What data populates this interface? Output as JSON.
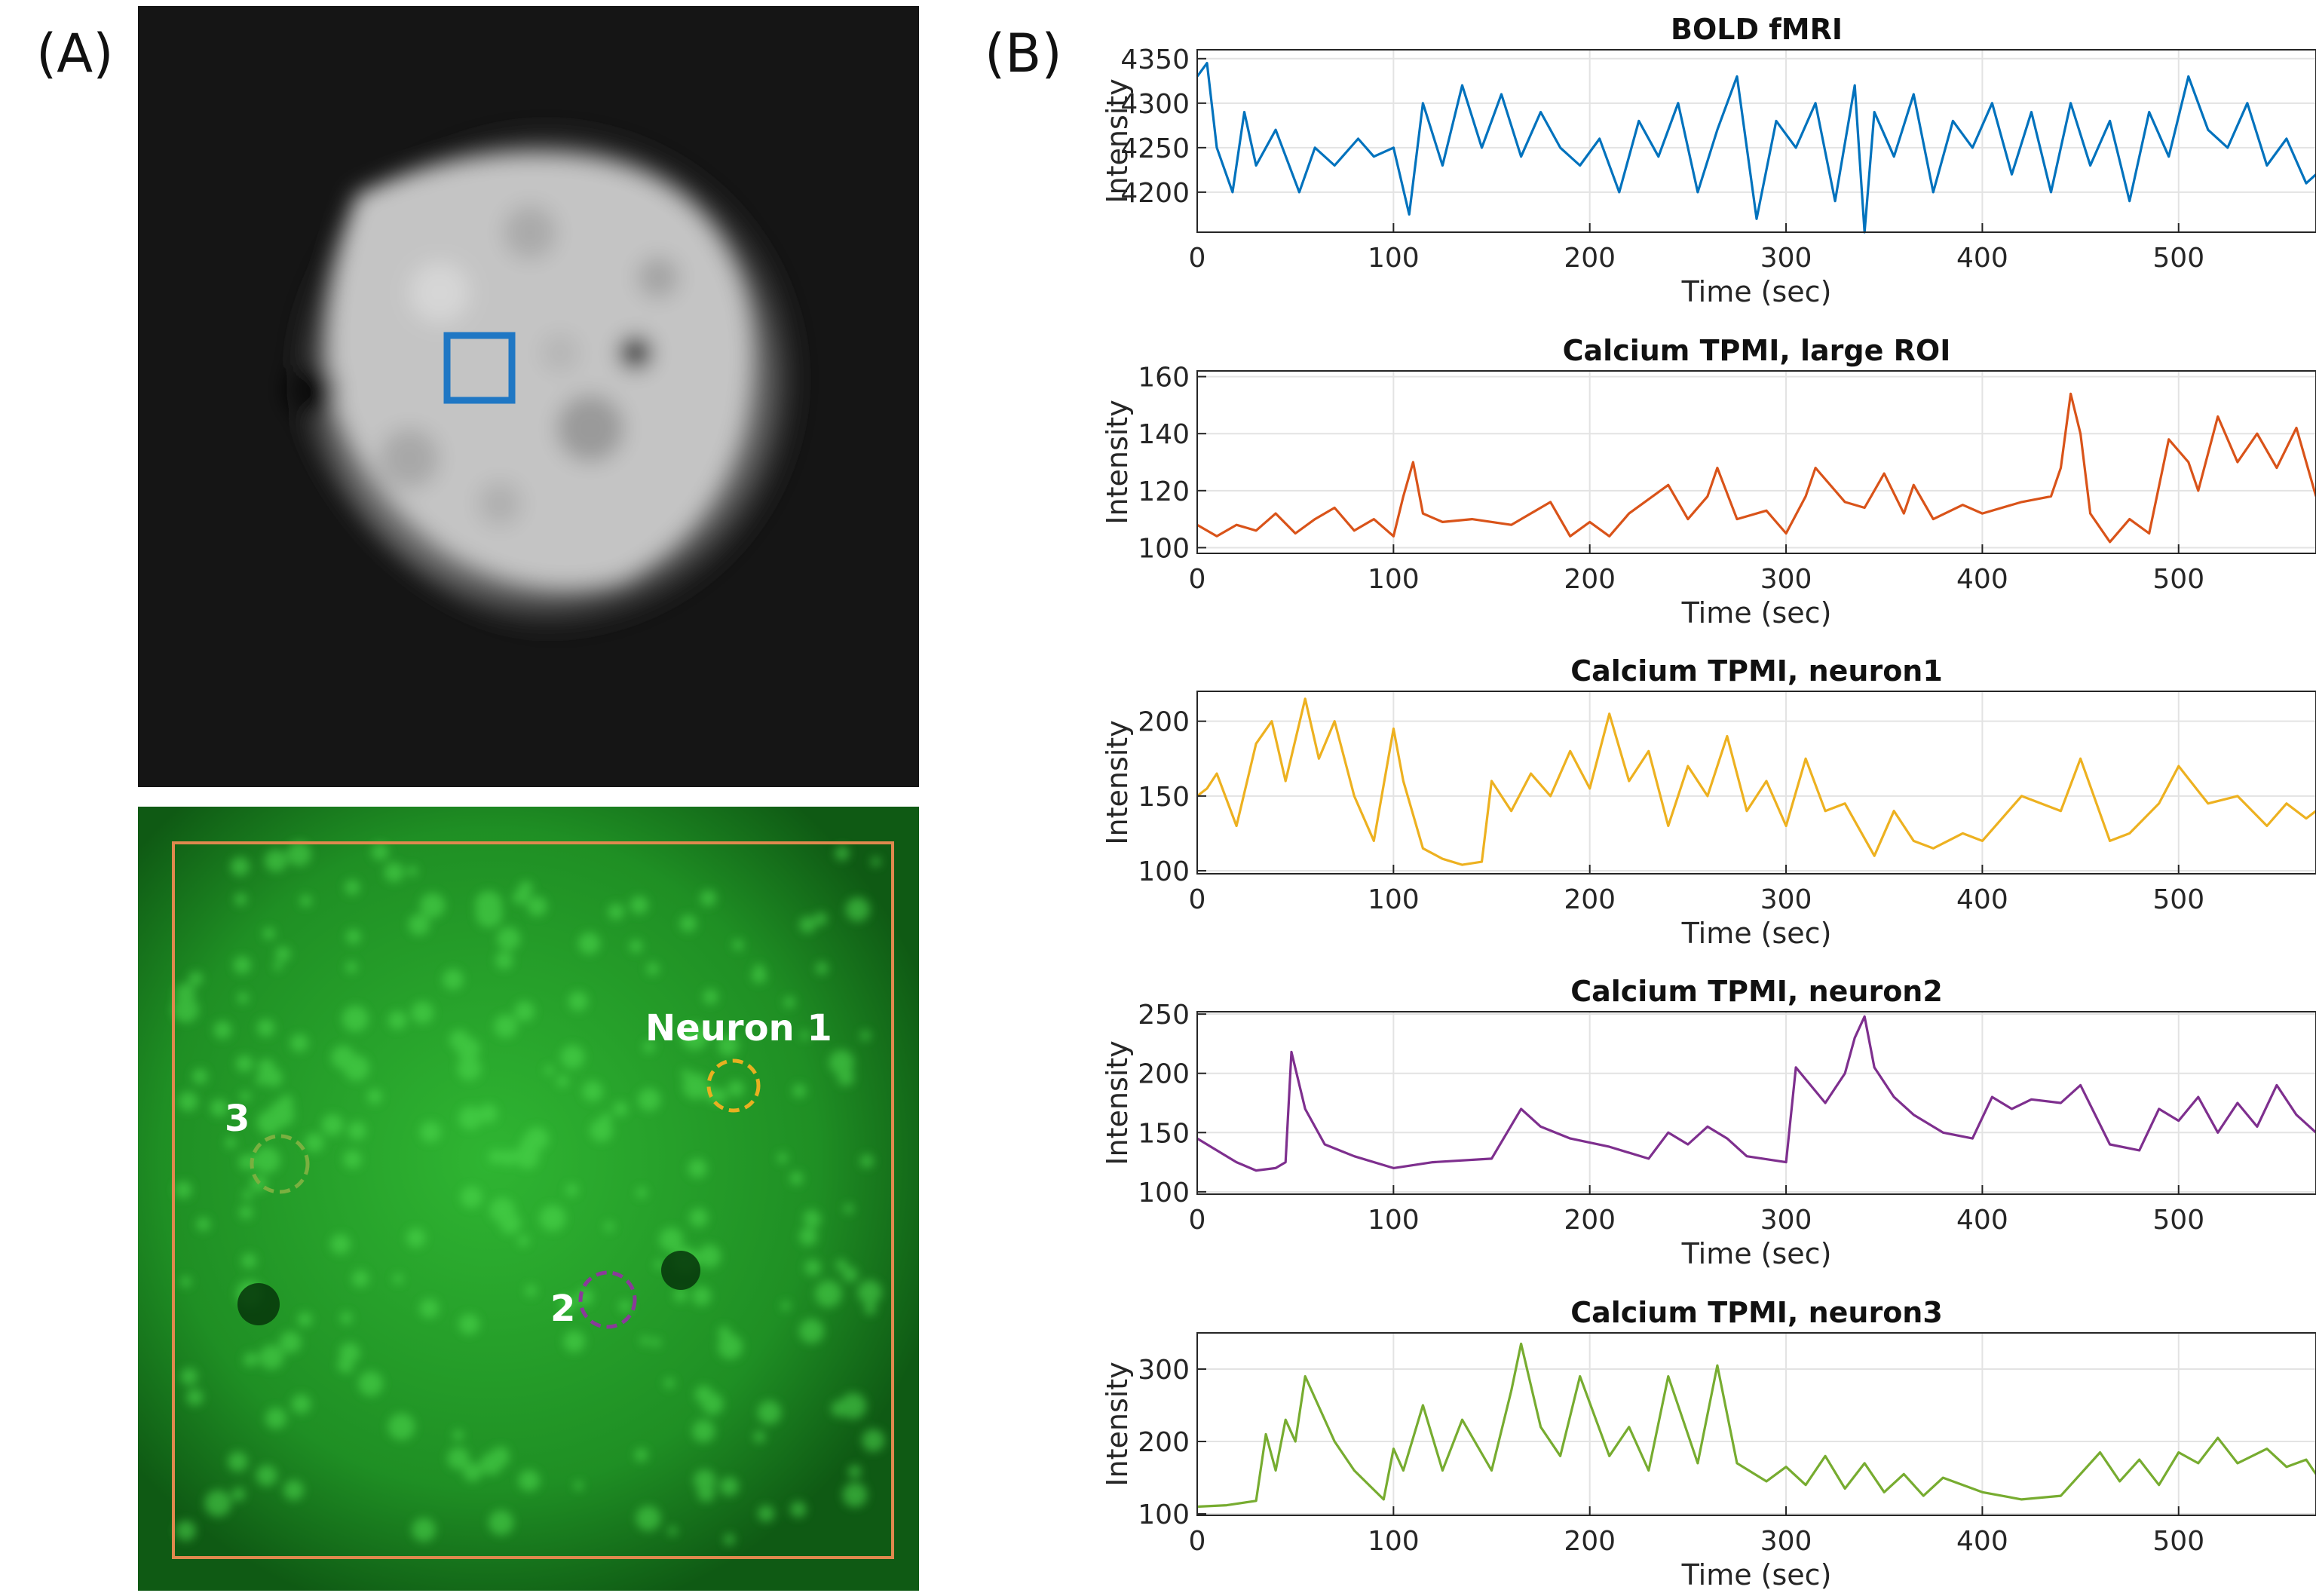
{
  "panels": {
    "a": {
      "label": "(A)"
    },
    "b": {
      "label": "(B)"
    }
  },
  "images": {
    "bold_roi_color": "#1f77c4",
    "tpmi_roi_box_color": "#e0894e",
    "neuron_annotations": [
      {
        "text": "Neuron 1",
        "color": "#e8b020"
      },
      {
        "text": "2",
        "color": "#8a3a9a"
      },
      {
        "text": "3",
        "color": "#7ab040"
      }
    ]
  },
  "chart_data": [
    {
      "type": "line",
      "title": "BOLD fMRI",
      "xlabel": "Time (sec)",
      "ylabel": "Intensity",
      "color": "#0072bd",
      "xlim": [
        0,
        570
      ],
      "ylim": [
        4155,
        4360
      ],
      "xticks": [
        0,
        100,
        200,
        300,
        400,
        500
      ],
      "yticks": [
        4200,
        4250,
        4300,
        4350
      ],
      "grid": true,
      "x": [
        0,
        5,
        10,
        18,
        24,
        30,
        40,
        52,
        60,
        70,
        82,
        90,
        100,
        108,
        115,
        125,
        135,
        145,
        155,
        165,
        175,
        185,
        195,
        205,
        215,
        225,
        235,
        245,
        255,
        265,
        275,
        285,
        295,
        305,
        315,
        325,
        335,
        340,
        345,
        355,
        365,
        375,
        385,
        395,
        405,
        415,
        425,
        435,
        445,
        455,
        465,
        475,
        485,
        495,
        505,
        515,
        525,
        535,
        545,
        555,
        565,
        570
      ],
      "y": [
        4330,
        4345,
        4250,
        4200,
        4290,
        4230,
        4270,
        4200,
        4250,
        4230,
        4260,
        4240,
        4250,
        4175,
        4300,
        4230,
        4320,
        4250,
        4310,
        4240,
        4290,
        4250,
        4230,
        4260,
        4200,
        4280,
        4240,
        4300,
        4200,
        4270,
        4330,
        4170,
        4280,
        4250,
        4300,
        4190,
        4320,
        4155,
        4290,
        4240,
        4310,
        4200,
        4280,
        4250,
        4300,
        4220,
        4290,
        4200,
        4300,
        4230,
        4280,
        4190,
        4290,
        4240,
        4330,
        4270,
        4250,
        4300,
        4230,
        4260,
        4210,
        4220
      ]
    },
    {
      "type": "line",
      "title": "Calcium TPMI, large ROI",
      "xlabel": "Time (sec)",
      "ylabel": "Intensity",
      "color": "#d95319",
      "xlim": [
        0,
        570
      ],
      "ylim": [
        98,
        162
      ],
      "xticks": [
        0,
        100,
        200,
        300,
        400,
        500
      ],
      "yticks": [
        100,
        120,
        140,
        160
      ],
      "grid": true,
      "x": [
        0,
        10,
        20,
        30,
        40,
        50,
        60,
        70,
        80,
        90,
        100,
        105,
        110,
        115,
        125,
        140,
        160,
        180,
        190,
        200,
        210,
        220,
        240,
        250,
        260,
        265,
        275,
        290,
        300,
        310,
        315,
        330,
        340,
        350,
        360,
        365,
        375,
        390,
        400,
        420,
        435,
        440,
        445,
        450,
        455,
        465,
        475,
        485,
        495,
        505,
        510,
        520,
        530,
        540,
        550,
        560,
        570
      ],
      "y": [
        108,
        104,
        108,
        106,
        112,
        105,
        110,
        114,
        106,
        110,
        104,
        118,
        130,
        112,
        109,
        110,
        108,
        116,
        104,
        109,
        104,
        112,
        122,
        110,
        118,
        128,
        110,
        113,
        105,
        118,
        128,
        116,
        114,
        126,
        112,
        122,
        110,
        115,
        112,
        116,
        118,
        128,
        154,
        140,
        112,
        102,
        110,
        105,
        138,
        130,
        120,
        146,
        130,
        140,
        128,
        142,
        118
      ]
    },
    {
      "type": "line",
      "title": "Calcium TPMI, neuron1",
      "xlabel": "Time (sec)",
      "ylabel": "Intensity",
      "color": "#edb120",
      "xlim": [
        0,
        570
      ],
      "ylim": [
        98,
        220
      ],
      "xticks": [
        0,
        100,
        200,
        300,
        400,
        500
      ],
      "yticks": [
        100,
        150,
        200
      ],
      "grid": true,
      "x": [
        0,
        5,
        10,
        20,
        30,
        38,
        45,
        55,
        62,
        70,
        80,
        90,
        100,
        105,
        115,
        125,
        135,
        145,
        150,
        160,
        170,
        180,
        190,
        200,
        210,
        220,
        230,
        240,
        250,
        260,
        270,
        280,
        290,
        300,
        310,
        320,
        330,
        345,
        355,
        365,
        375,
        390,
        400,
        420,
        440,
        450,
        465,
        475,
        490,
        500,
        515,
        530,
        545,
        555,
        565,
        570
      ],
      "y": [
        150,
        155,
        165,
        130,
        185,
        200,
        160,
        215,
        175,
        200,
        150,
        120,
        195,
        160,
        115,
        108,
        104,
        106,
        160,
        140,
        165,
        150,
        180,
        155,
        205,
        160,
        180,
        130,
        170,
        150,
        190,
        140,
        160,
        130,
        175,
        140,
        145,
        110,
        140,
        120,
        115,
        125,
        120,
        150,
        140,
        175,
        120,
        125,
        145,
        170,
        145,
        150,
        130,
        145,
        135,
        140
      ]
    },
    {
      "type": "line",
      "title": "Calcium TPMI, neuron2",
      "xlabel": "Time (sec)",
      "ylabel": "Intensity",
      "color": "#7e2f8e",
      "xlim": [
        0,
        570
      ],
      "ylim": [
        98,
        252
      ],
      "xticks": [
        0,
        100,
        200,
        300,
        400,
        500
      ],
      "yticks": [
        100,
        150,
        200,
        250
      ],
      "grid": true,
      "x": [
        0,
        10,
        20,
        30,
        40,
        45,
        48,
        55,
        65,
        80,
        100,
        120,
        150,
        165,
        175,
        190,
        210,
        230,
        240,
        250,
        260,
        270,
        280,
        300,
        305,
        310,
        320,
        330,
        335,
        340,
        345,
        355,
        365,
        380,
        395,
        405,
        415,
        425,
        440,
        450,
        465,
        480,
        490,
        500,
        510,
        520,
        530,
        540,
        550,
        560,
        570
      ],
      "y": [
        145,
        135,
        125,
        118,
        120,
        125,
        218,
        170,
        140,
        130,
        120,
        125,
        128,
        170,
        155,
        145,
        138,
        128,
        150,
        140,
        155,
        145,
        130,
        125,
        205,
        195,
        175,
        200,
        230,
        248,
        205,
        180,
        165,
        150,
        145,
        180,
        170,
        178,
        175,
        190,
        140,
        135,
        170,
        160,
        180,
        150,
        175,
        155,
        190,
        165,
        150
      ]
    },
    {
      "type": "line",
      "title": "Calcium TPMI, neuron3",
      "xlabel": "Time (sec)",
      "ylabel": "Intensity",
      "color": "#77ac30",
      "xlim": [
        0,
        570
      ],
      "ylim": [
        98,
        350
      ],
      "xticks": [
        0,
        100,
        200,
        300,
        400,
        500
      ],
      "yticks": [
        100,
        200,
        300
      ],
      "grid": true,
      "x": [
        0,
        15,
        30,
        35,
        40,
        45,
        50,
        55,
        70,
        80,
        95,
        100,
        105,
        115,
        125,
        135,
        150,
        160,
        165,
        175,
        185,
        195,
        210,
        220,
        230,
        240,
        255,
        265,
        275,
        290,
        300,
        310,
        320,
        330,
        340,
        350,
        360,
        370,
        380,
        400,
        420,
        440,
        460,
        470,
        480,
        490,
        500,
        510,
        520,
        530,
        545,
        555,
        565,
        570
      ],
      "y": [
        110,
        112,
        118,
        210,
        160,
        230,
        200,
        290,
        200,
        160,
        120,
        190,
        160,
        250,
        160,
        230,
        160,
        270,
        335,
        220,
        180,
        290,
        180,
        220,
        160,
        290,
        170,
        305,
        170,
        145,
        165,
        140,
        180,
        135,
        170,
        130,
        155,
        125,
        150,
        130,
        120,
        125,
        185,
        145,
        175,
        140,
        185,
        170,
        205,
        170,
        190,
        165,
        175,
        155
      ]
    }
  ]
}
